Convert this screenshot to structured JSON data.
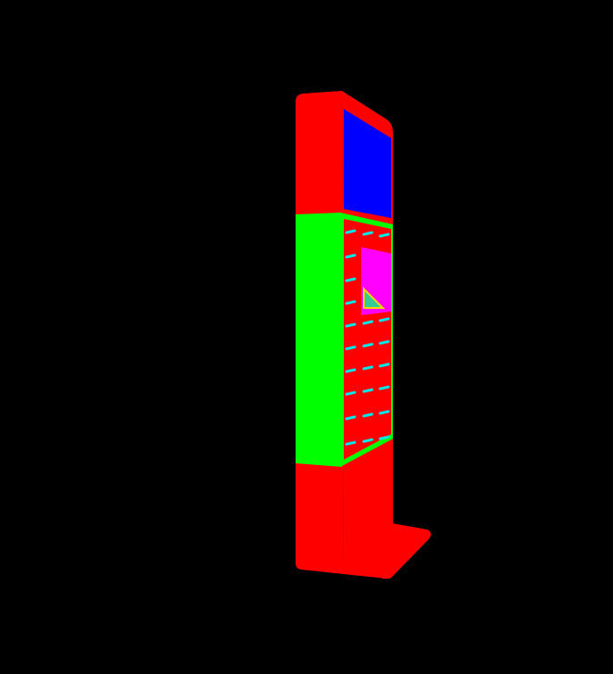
{
  "colors": {
    "background": "#000000",
    "body": "#ff0000",
    "screen": "#0000ff",
    "locker_frame": "#00ff00",
    "locker_face": "#ff0000",
    "slots": "#00e5e5",
    "card_panel": "#ff00ff",
    "card_accent_fill": "#33cc99",
    "card_accent_stroke": "#ffd700"
  },
  "objects": {
    "kiosk": "charging-kiosk",
    "screen": "display-screen",
    "locker": "locker-panel",
    "card_panel": "payment-panel",
    "base": "kiosk-base"
  }
}
